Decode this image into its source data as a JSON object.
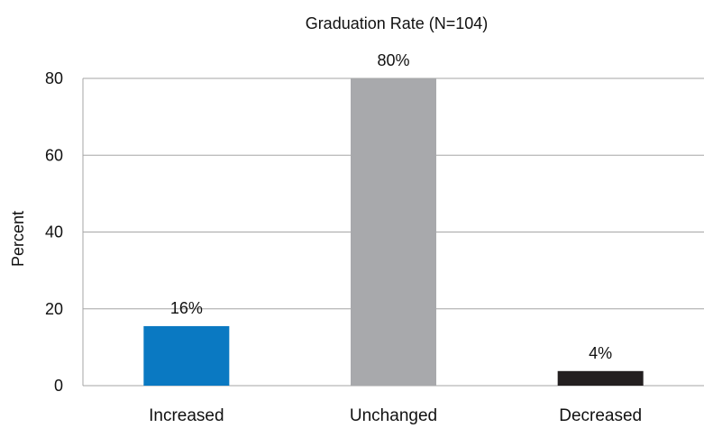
{
  "chart_data": {
    "type": "bar",
    "title": "Graduation Rate (N=104)",
    "xlabel": "",
    "ylabel": "Percent",
    "ylim": [
      0,
      80
    ],
    "yticks": [
      0,
      20,
      40,
      60,
      80
    ],
    "grid": true,
    "categories": [
      "Increased",
      "Unchanged",
      "Decreased"
    ],
    "values": [
      15.5,
      80,
      3.8
    ],
    "data_labels": [
      "16%",
      "80%",
      "4%"
    ],
    "colors": [
      "#0a79c2",
      "#a8a9ac",
      "#231f20"
    ]
  }
}
